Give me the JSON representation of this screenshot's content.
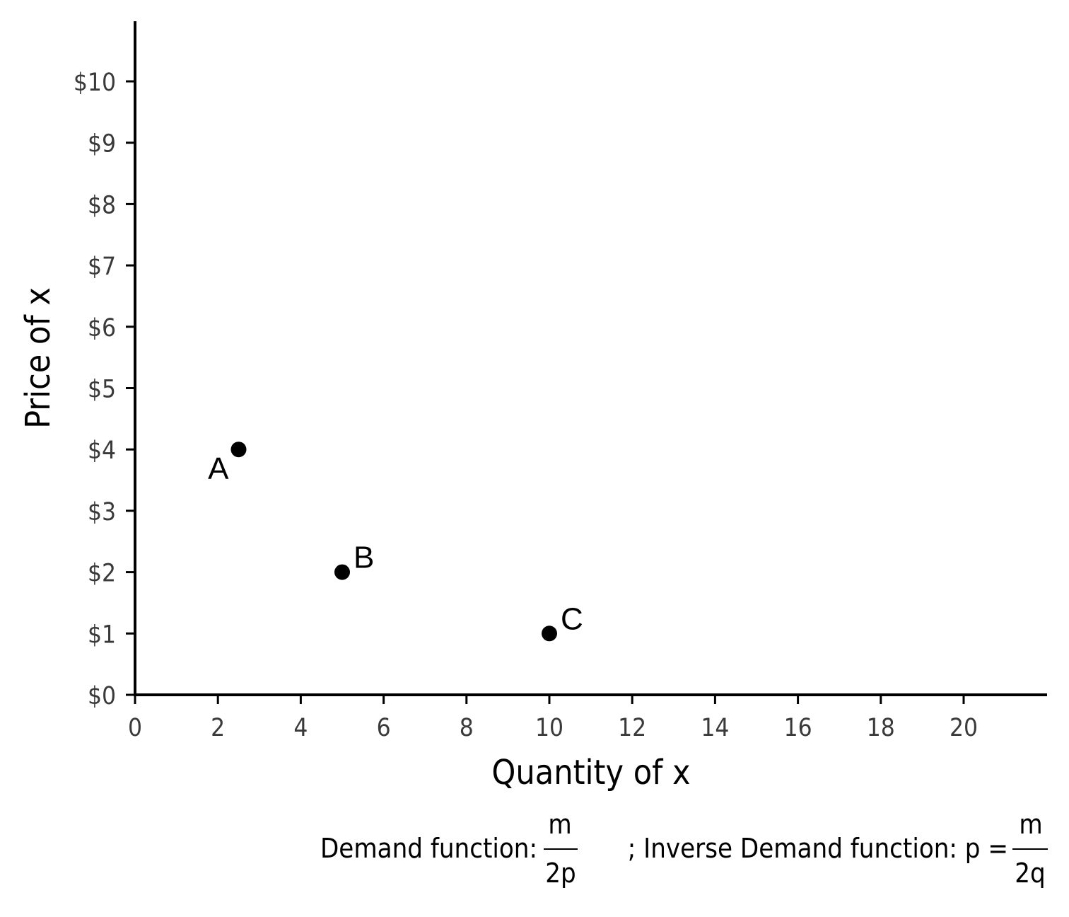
{
  "chart_data": {
    "type": "scatter",
    "xlabel": "Quantity of x",
    "ylabel": "Price of x",
    "xlim": [
      0,
      22
    ],
    "ylim": [
      0,
      11
    ],
    "x_ticks": [
      0,
      2,
      4,
      6,
      8,
      10,
      12,
      14,
      16,
      18,
      20
    ],
    "x_tick_labels": [
      "0",
      "2",
      "4",
      "6",
      "8",
      "10",
      "12",
      "14",
      "16",
      "18",
      "20"
    ],
    "y_ticks": [
      0,
      1,
      2,
      3,
      4,
      5,
      6,
      7,
      8,
      9,
      10
    ],
    "y_tick_labels": [
      "$0",
      "$1",
      "$2",
      "$3",
      "$4",
      "$5",
      "$6",
      "$7",
      "$8",
      "$9",
      "$10"
    ],
    "grid": false,
    "points": [
      {
        "label": "A",
        "x": 2.5,
        "y": 4,
        "label_pos": "bottom-left"
      },
      {
        "label": "B",
        "x": 5,
        "y": 2,
        "label_pos": "top-right"
      },
      {
        "label": "C",
        "x": 10,
        "y": 1,
        "label_pos": "top-right"
      }
    ],
    "point_color": "#000000",
    "caption": {
      "demand_prefix": "Demand function:",
      "demand_numerator": "m",
      "demand_denominator": "2p",
      "separator": "; Inverse Demand function: p =",
      "inverse_numerator": "m",
      "inverse_denominator": "2q"
    }
  }
}
